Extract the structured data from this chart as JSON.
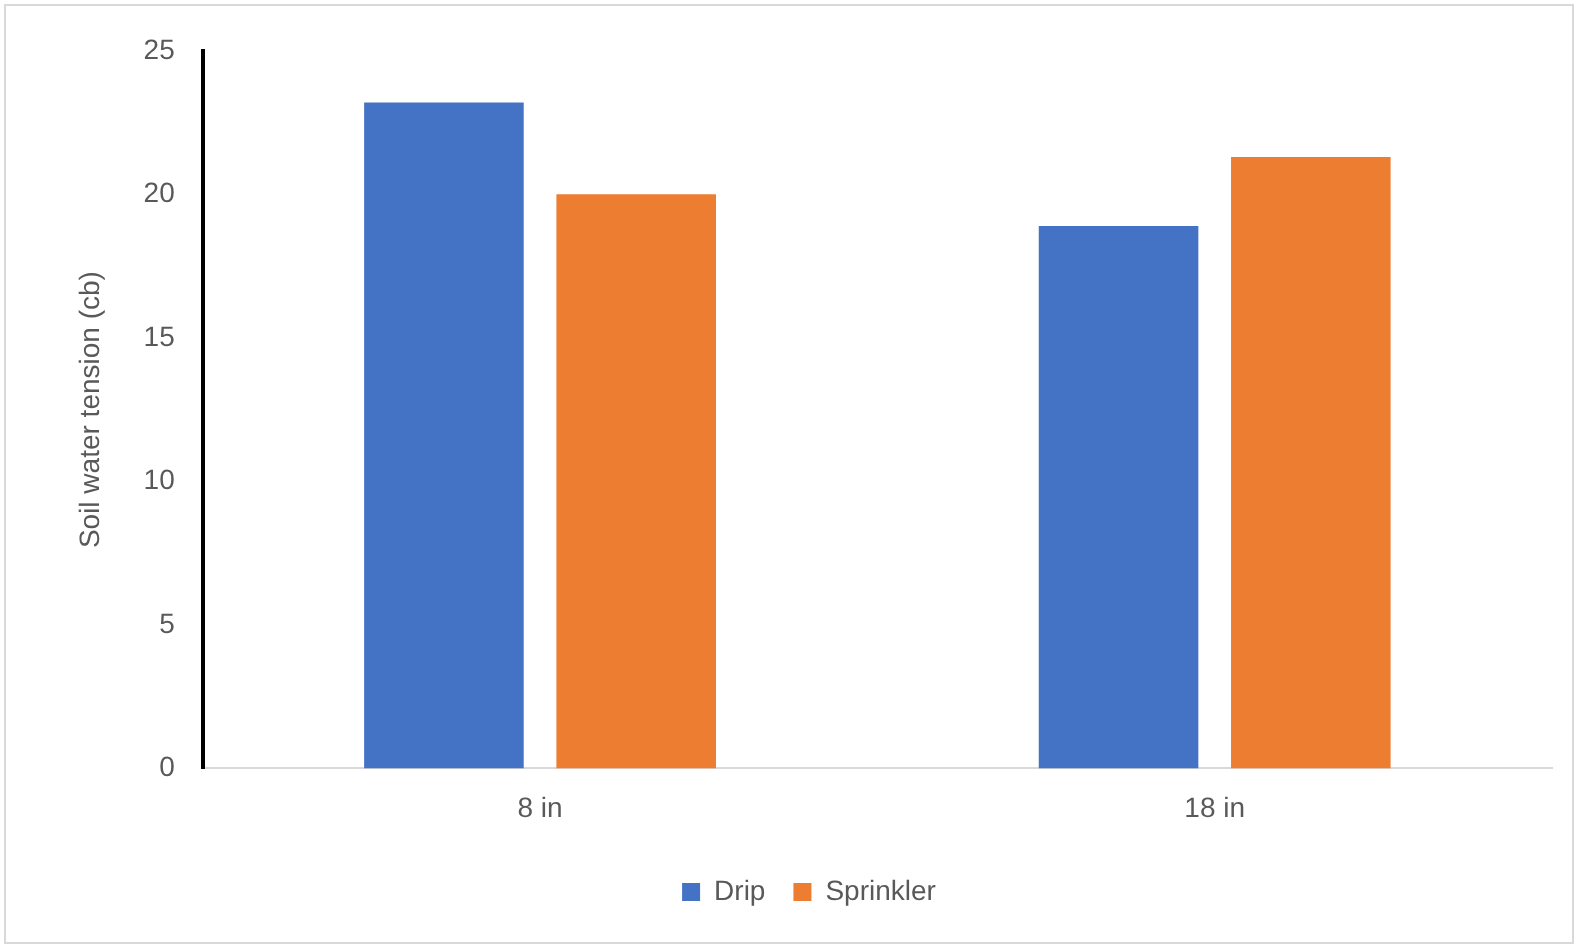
{
  "chart_data": {
    "type": "bar",
    "ylabel": "Soil water tension (cb)",
    "categories": [
      "8 in",
      "18 in"
    ],
    "series": [
      {
        "name": "Drip",
        "color": "#4472c4",
        "values": [
          23.2,
          18.9
        ]
      },
      {
        "name": "Sprinkler",
        "color": "#ed7d31",
        "values": [
          20.0,
          21.3
        ]
      }
    ],
    "ylim": [
      0,
      25
    ],
    "yticks": [
      0,
      5,
      10,
      15,
      20,
      25
    ],
    "grid": false,
    "legend": "bottom"
  }
}
